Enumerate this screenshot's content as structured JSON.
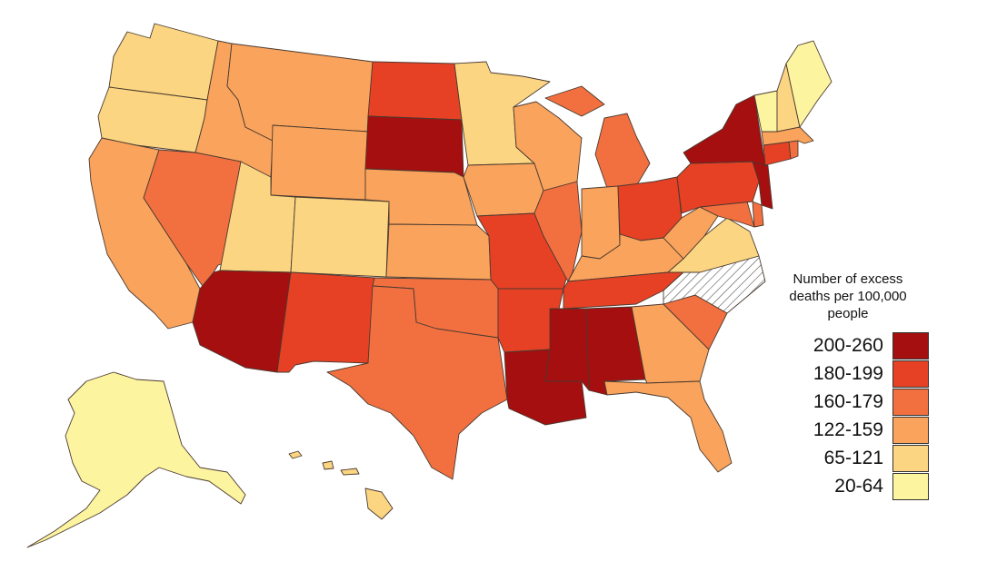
{
  "legend": {
    "title": "Number of excess deaths per 100,000 people",
    "bins": [
      {
        "label": "200-260",
        "color": "#a50f0f"
      },
      {
        "label": "180-199",
        "color": "#e64125"
      },
      {
        "label": "160-179",
        "color": "#f27040"
      },
      {
        "label": "122-159",
        "color": "#f9a35c"
      },
      {
        "label": "65-121",
        "color": "#fbd581"
      },
      {
        "label": "20-64",
        "color": "#fdf4a0"
      }
    ],
    "no_data_pattern": "hatched"
  },
  "states": [
    {
      "name": "Washington",
      "bin": "65-121"
    },
    {
      "name": "Oregon",
      "bin": "65-121"
    },
    {
      "name": "California",
      "bin": "122-159"
    },
    {
      "name": "Nevada",
      "bin": "160-179"
    },
    {
      "name": "Idaho",
      "bin": "122-159"
    },
    {
      "name": "Montana",
      "bin": "122-159"
    },
    {
      "name": "Wyoming",
      "bin": "122-159"
    },
    {
      "name": "Utah",
      "bin": "65-121"
    },
    {
      "name": "Colorado",
      "bin": "65-121"
    },
    {
      "name": "Arizona",
      "bin": "200-260"
    },
    {
      "name": "New Mexico",
      "bin": "180-199"
    },
    {
      "name": "North Dakota",
      "bin": "180-199"
    },
    {
      "name": "South Dakota",
      "bin": "200-260"
    },
    {
      "name": "Nebraska",
      "bin": "122-159"
    },
    {
      "name": "Kansas",
      "bin": "122-159"
    },
    {
      "name": "Oklahoma",
      "bin": "160-179"
    },
    {
      "name": "Texas",
      "bin": "160-179"
    },
    {
      "name": "Minnesota",
      "bin": "65-121"
    },
    {
      "name": "Iowa",
      "bin": "122-159"
    },
    {
      "name": "Missouri",
      "bin": "180-199"
    },
    {
      "name": "Arkansas",
      "bin": "180-199"
    },
    {
      "name": "Louisiana",
      "bin": "200-260"
    },
    {
      "name": "Wisconsin",
      "bin": "122-159"
    },
    {
      "name": "Illinois",
      "bin": "160-179"
    },
    {
      "name": "Michigan",
      "bin": "160-179"
    },
    {
      "name": "Indiana",
      "bin": "122-159"
    },
    {
      "name": "Ohio",
      "bin": "180-199"
    },
    {
      "name": "Kentucky",
      "bin": "122-159"
    },
    {
      "name": "Tennessee",
      "bin": "180-199"
    },
    {
      "name": "Mississippi",
      "bin": "200-260"
    },
    {
      "name": "Alabama",
      "bin": "200-260"
    },
    {
      "name": "Georgia",
      "bin": "122-159"
    },
    {
      "name": "Florida",
      "bin": "122-159"
    },
    {
      "name": "South Carolina",
      "bin": "160-179"
    },
    {
      "name": "North Carolina",
      "bin": "no-data"
    },
    {
      "name": "Virginia",
      "bin": "65-121"
    },
    {
      "name": "West Virginia",
      "bin": "122-159"
    },
    {
      "name": "Maryland",
      "bin": "160-179"
    },
    {
      "name": "Delaware",
      "bin": "160-179"
    },
    {
      "name": "Pennsylvania",
      "bin": "180-199"
    },
    {
      "name": "New Jersey",
      "bin": "200-260"
    },
    {
      "name": "New York",
      "bin": "200-260"
    },
    {
      "name": "Connecticut",
      "bin": "180-199"
    },
    {
      "name": "Rhode Island",
      "bin": "160-179"
    },
    {
      "name": "Massachusetts",
      "bin": "122-159"
    },
    {
      "name": "Vermont",
      "bin": "20-64"
    },
    {
      "name": "New Hampshire",
      "bin": "65-121"
    },
    {
      "name": "Maine",
      "bin": "20-64"
    },
    {
      "name": "Alaska",
      "bin": "20-64"
    },
    {
      "name": "Hawaii",
      "bin": "65-121"
    }
  ]
}
